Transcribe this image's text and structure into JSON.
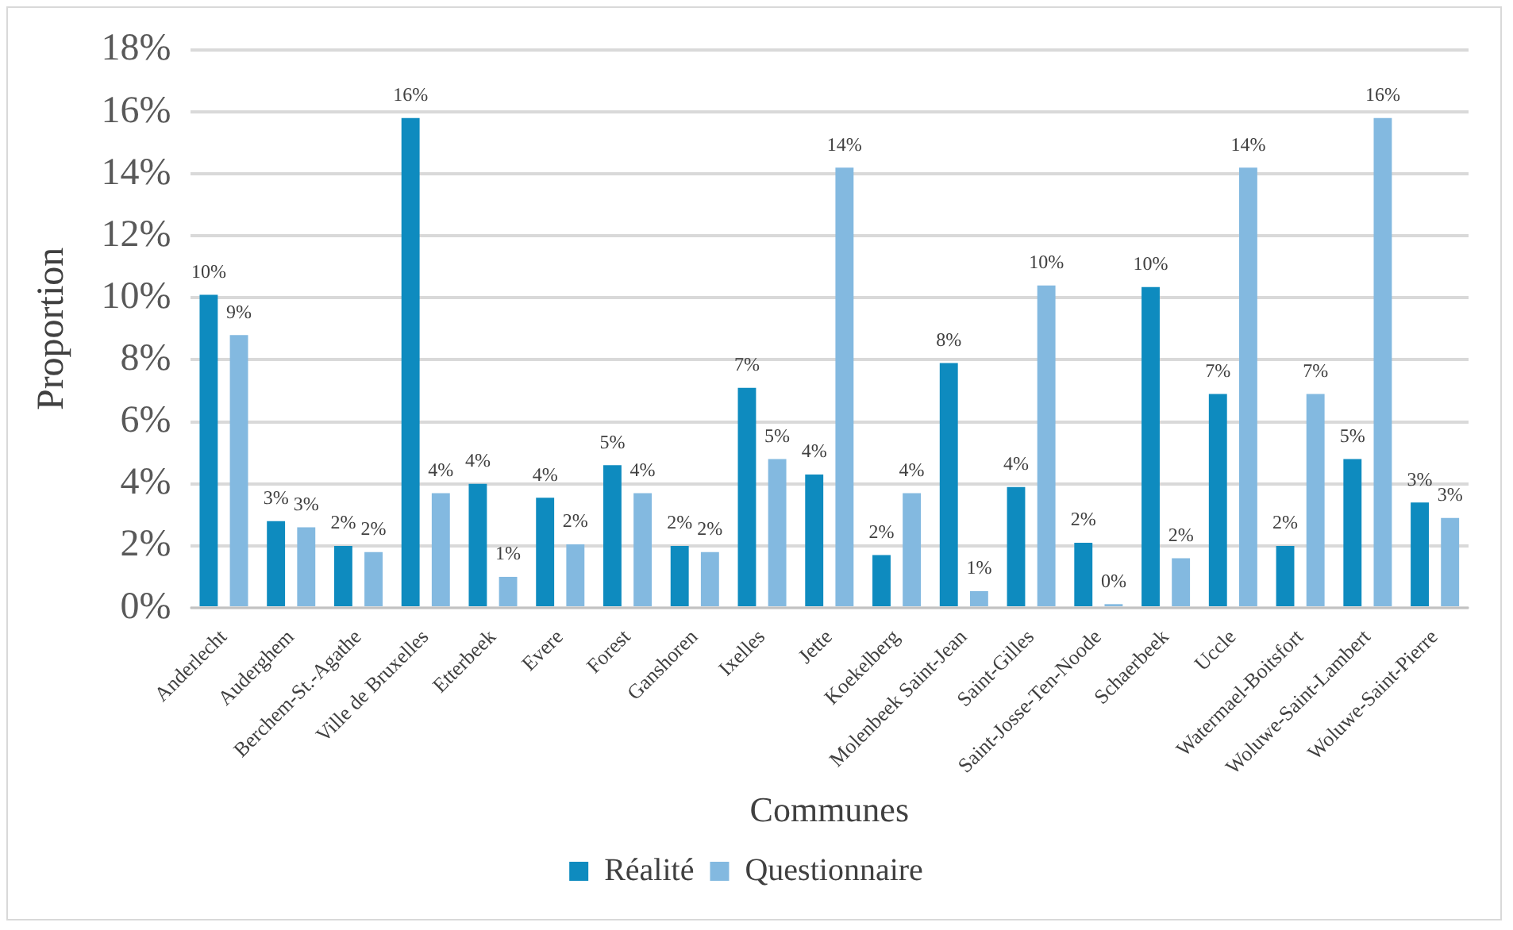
{
  "chart_data": {
    "type": "bar",
    "xlabel": "Communes",
    "ylabel": "Proportion",
    "categories": [
      "Anderlecht",
      "Auderghem",
      "Berchem-St.-Agathe",
      "Ville de Bruxelles",
      "Etterbeek",
      "Evere",
      "Forest",
      "Ganshoren",
      "Ixelles",
      "Jette",
      "Koekelberg",
      "Molenbeek Saint-Jean",
      "Saint-Gilles",
      "Saint-Josse-Ten-Noode",
      "Schaerbeek",
      "Uccle",
      "Watermael-Boitsfort",
      "Woluwe-Saint-Lambert",
      "Woluwe-Saint-Pierre"
    ],
    "series": [
      {
        "name": "Réalité",
        "color": "#0e8bbf",
        "values": [
          10.1,
          2.8,
          2.0,
          15.8,
          4.0,
          3.55,
          4.6,
          2.0,
          7.1,
          4.3,
          1.7,
          7.9,
          3.9,
          2.1,
          10.35,
          6.9,
          2.0,
          4.8,
          3.4
        ],
        "value_labels": [
          "10%",
          "3%",
          "2%",
          "16%",
          "4%",
          "4%",
          "5%",
          "2%",
          "7%",
          "4%",
          "2%",
          "8%",
          "4%",
          "2%",
          "10%",
          "7%",
          "2%",
          "5%",
          "3%"
        ]
      },
      {
        "name": "Questionnaire",
        "color": "#83b9e0",
        "values": [
          8.8,
          2.6,
          1.8,
          3.7,
          1.0,
          2.05,
          3.7,
          1.8,
          4.8,
          14.2,
          3.7,
          0.54,
          10.4,
          0.12,
          1.6,
          14.2,
          6.9,
          15.8,
          2.9
        ],
        "value_labels": [
          "9%",
          "3%",
          "2%",
          "4%",
          "1%",
          "2%",
          "4%",
          "2%",
          "5%",
          "14%",
          "4%",
          "1%",
          "10%",
          "0%",
          "2%",
          "14%",
          "7%",
          "16%",
          "3%"
        ]
      }
    ],
    "ylim": [
      0,
      18
    ],
    "yticks": [
      {
        "value": 0,
        "label": "0%"
      },
      {
        "value": 2,
        "label": "2%"
      },
      {
        "value": 4,
        "label": "4%"
      },
      {
        "value": 6,
        "label": "6%"
      },
      {
        "value": 8,
        "label": "8%"
      },
      {
        "value": 10,
        "label": "10%"
      },
      {
        "value": 12,
        "label": "12%"
      },
      {
        "value": 14,
        "label": "14%"
      },
      {
        "value": 16,
        "label": "16%"
      },
      {
        "value": 18,
        "label": "18%"
      }
    ],
    "grid": "y",
    "legend": "bottom"
  }
}
